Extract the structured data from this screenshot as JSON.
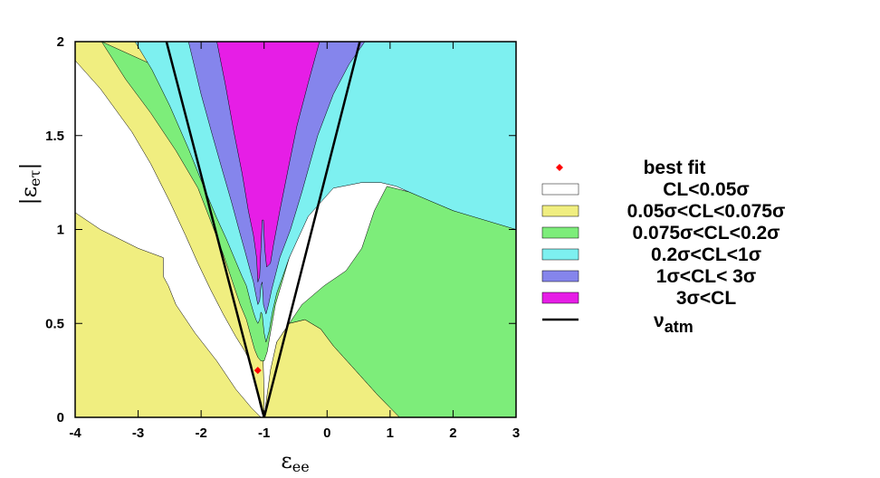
{
  "chart_data": {
    "type": "contour",
    "title": "",
    "xlabel": "ε",
    "xlabel_sub": "ee",
    "ylabel": "|ε",
    "ylabel_sub": "eτ",
    "ylabel_close": "|",
    "xlim": [
      -4,
      3
    ],
    "ylim": [
      0,
      2
    ],
    "xticks": [
      -4,
      -3,
      -2,
      -1,
      0,
      1,
      2,
      3
    ],
    "yticks": [
      0,
      0.5,
      1,
      1.5,
      2
    ],
    "xtick_labels": [
      "-4",
      "-3",
      "-2",
      "-1",
      "0",
      "1",
      "2",
      "3"
    ],
    "ytick_labels": [
      "0",
      "0.5",
      "1",
      "1.5",
      "2"
    ],
    "grid": false,
    "legend_position": "right",
    "best_fit": {
      "x": -1.1,
      "y": 0.25,
      "color": "#ff0000"
    },
    "regions": [
      {
        "name": "CL<0.05σ",
        "color": "#ffffff"
      },
      {
        "name": "0.05σ<CL<0.075σ",
        "color": "#f0ee80"
      },
      {
        "name": "0.075σ<CL<0.2σ",
        "color": "#7ded7a"
      },
      {
        "name": "0.2σ<CL<1σ",
        "color": "#7df0f0"
      },
      {
        "name": "1σ<CL< 3σ",
        "color": "#8585ec"
      },
      {
        "name": "3σ<CL",
        "color": "#e61ee6"
      }
    ],
    "lines": [
      {
        "name": "ν",
        "sub": "atm",
        "color": "#000000",
        "segments": [
          [
            [
              -1,
              0
            ],
            [
              -2.55,
              2
            ]
          ],
          [
            [
              -1,
              0
            ],
            [
              0.52,
              2
            ]
          ]
        ]
      }
    ],
    "contours": {
      "yellow_left_top": [
        [
          -4,
          2
        ],
        [
          -4,
          1.9
        ],
        [
          -3.6,
          1.75
        ],
        [
          -3.1,
          1.52
        ],
        [
          -2.8,
          1.35
        ],
        [
          -2.5,
          1.15
        ],
        [
          -2.25,
          0.97
        ],
        [
          -2.05,
          0.82
        ],
        [
          -1.85,
          0.68
        ],
        [
          -1.65,
          0.55
        ],
        [
          -1.45,
          0.43
        ],
        [
          -1.3,
          0.35
        ],
        [
          -1.2,
          0.28
        ],
        [
          -1.12,
          0.15
        ],
        [
          -1.07,
          0.07
        ],
        [
          -1.03,
          0.02
        ],
        [
          -1,
          0
        ],
        [
          -1.0,
          0.14
        ],
        [
          -1.02,
          0.35
        ],
        [
          -1.07,
          0.55
        ],
        [
          -1.2,
          0.82
        ],
        [
          -1.4,
          1.0
        ],
        [
          -1.72,
          1.2
        ],
        [
          -2.05,
          1.45
        ],
        [
          -2.45,
          1.72
        ],
        [
          -2.7,
          1.9
        ],
        [
          -2.95,
          2
        ]
      ],
      "green_left": [
        [
          -3.58,
          2
        ],
        [
          -3.2,
          1.8
        ],
        [
          -2.8,
          1.62
        ],
        [
          -2.4,
          1.42
        ],
        [
          -2.05,
          1.22
        ],
        [
          -1.82,
          1.02
        ],
        [
          -1.65,
          0.87
        ],
        [
          -1.5,
          0.72
        ],
        [
          -1.38,
          0.6
        ],
        [
          -1.28,
          0.52
        ],
        [
          -1.2,
          0.42
        ],
        [
          -1.15,
          0.36
        ],
        [
          -1.1,
          0.32
        ],
        [
          -1.05,
          0.3
        ],
        [
          -1.0,
          0.3
        ],
        [
          -0.95,
          0.35
        ],
        [
          -0.9,
          0.45
        ],
        [
          -0.82,
          0.6
        ],
        [
          -0.6,
          0.85
        ],
        [
          -0.2,
          1.2
        ],
        [
          0.3,
          1.55
        ],
        [
          0.7,
          1.8
        ],
        [
          1.05,
          2
        ]
      ],
      "cyan": [
        [
          -3.05,
          2
        ],
        [
          -2.78,
          1.85
        ],
        [
          -2.5,
          1.66
        ],
        [
          -2.2,
          1.43
        ],
        [
          -1.95,
          1.22
        ],
        [
          -1.75,
          1.06
        ],
        [
          -1.6,
          0.95
        ],
        [
          -1.45,
          0.83
        ],
        [
          -1.35,
          0.75
        ],
        [
          -1.28,
          0.7
        ],
        [
          -1.22,
          0.62
        ],
        [
          -1.17,
          0.56
        ],
        [
          -1.13,
          0.52
        ],
        [
          -1.1,
          0.5
        ],
        [
          -1.07,
          0.52
        ],
        [
          -1.05,
          0.56
        ],
        [
          -1.03,
          0.55
        ],
        [
          -1.0,
          0.45
        ],
        [
          -0.97,
          0.4
        ],
        [
          -0.92,
          0.46
        ],
        [
          -0.87,
          0.56
        ],
        [
          -0.8,
          0.66
        ],
        [
          -0.6,
          0.85
        ],
        [
          -0.3,
          1.07
        ],
        [
          0.1,
          1.22
        ],
        [
          0.55,
          1.25
        ],
        [
          0.85,
          1.25
        ],
        [
          1.1,
          1.23
        ],
        [
          1.5,
          1.17
        ],
        [
          2,
          1.1
        ],
        [
          2.5,
          1.03
        ],
        [
          3,
          1.0
        ],
        [
          3,
          2
        ]
      ],
      "blue": [
        [
          -2.2,
          2
        ],
        [
          -2.0,
          1.72
        ],
        [
          -1.82,
          1.5
        ],
        [
          -1.65,
          1.3
        ],
        [
          -1.52,
          1.15
        ],
        [
          -1.4,
          1.0
        ],
        [
          -1.3,
          0.88
        ],
        [
          -1.22,
          0.78
        ],
        [
          -1.17,
          0.72
        ],
        [
          -1.13,
          0.65
        ],
        [
          -1.1,
          0.6
        ],
        [
          -1.07,
          0.62
        ],
        [
          -1.05,
          0.7
        ],
        [
          -1.03,
          0.72
        ],
        [
          -1.01,
          0.6
        ],
        [
          -0.97,
          0.55
        ],
        [
          -0.93,
          0.6
        ],
        [
          -0.88,
          0.68
        ],
        [
          -0.75,
          0.85
        ],
        [
          -0.58,
          1.0
        ],
        [
          -0.4,
          1.2
        ],
        [
          -0.15,
          1.5
        ],
        [
          0.1,
          1.72
        ],
        [
          0.35,
          1.88
        ],
        [
          0.6,
          2
        ]
      ],
      "magenta": [
        [
          -1.75,
          2
        ],
        [
          -1.62,
          1.78
        ],
        [
          -1.48,
          1.52
        ],
        [
          -1.35,
          1.3
        ],
        [
          -1.25,
          1.1
        ],
        [
          -1.17,
          0.97
        ],
        [
          -1.12,
          0.85
        ],
        [
          -1.1,
          0.72
        ],
        [
          -1.07,
          0.75
        ],
        [
          -1.05,
          0.9
        ],
        [
          -1.03,
          1.05
        ],
        [
          -1.01,
          1.05
        ],
        [
          -0.99,
          0.9
        ],
        [
          -0.96,
          0.8
        ],
        [
          -0.9,
          0.82
        ],
        [
          -0.85,
          0.92
        ],
        [
          -0.75,
          1.1
        ],
        [
          -0.62,
          1.32
        ],
        [
          -0.48,
          1.55
        ],
        [
          -0.3,
          1.78
        ],
        [
          -0.12,
          2
        ]
      ],
      "yellow_bottom": [
        [
          -4,
          0
        ],
        [
          -4,
          1.09
        ],
        [
          -3.6,
          1.0
        ],
        [
          -3.0,
          0.9
        ],
        [
          -2.6,
          0.85
        ],
        [
          -2.6,
          0.75
        ],
        [
          -2.52,
          0.7
        ],
        [
          -2.4,
          0.6
        ],
        [
          -2.1,
          0.45
        ],
        [
          -1.75,
          0.3
        ],
        [
          -1.45,
          0.15
        ],
        [
          -1.2,
          0.05
        ],
        [
          -1.05,
          0.0
        ]
      ],
      "yellow_right": [
        [
          -0.9,
          0.25
        ],
        [
          -0.8,
          0.4
        ],
        [
          -0.6,
          0.5
        ],
        [
          -0.35,
          0.52
        ],
        [
          -0.1,
          0.47
        ],
        [
          0.1,
          0.38
        ],
        [
          0.45,
          0.25
        ],
        [
          0.8,
          0.12
        ],
        [
          1.15,
          0.0
        ],
        [
          -1.0,
          0.0
        ]
      ],
      "green_right_fill": [
        [
          -0.85,
          0.3
        ],
        [
          -0.7,
          0.45
        ],
        [
          -0.4,
          0.6
        ],
        [
          -0.05,
          0.7
        ],
        [
          0.3,
          0.78
        ],
        [
          0.55,
          0.9
        ],
        [
          0.75,
          1.1
        ],
        [
          0.95,
          1.23
        ],
        [
          1.3,
          1.2
        ],
        [
          2,
          1.1
        ],
        [
          3,
          1.0
        ],
        [
          3,
          0
        ],
        [
          1.15,
          0
        ],
        [
          0.8,
          0.12
        ],
        [
          0.45,
          0.25
        ],
        [
          0.1,
          0.38
        ],
        [
          -0.1,
          0.47
        ],
        [
          -0.35,
          0.52
        ],
        [
          -0.6,
          0.5
        ],
        [
          -0.8,
          0.4
        ]
      ]
    }
  }
}
